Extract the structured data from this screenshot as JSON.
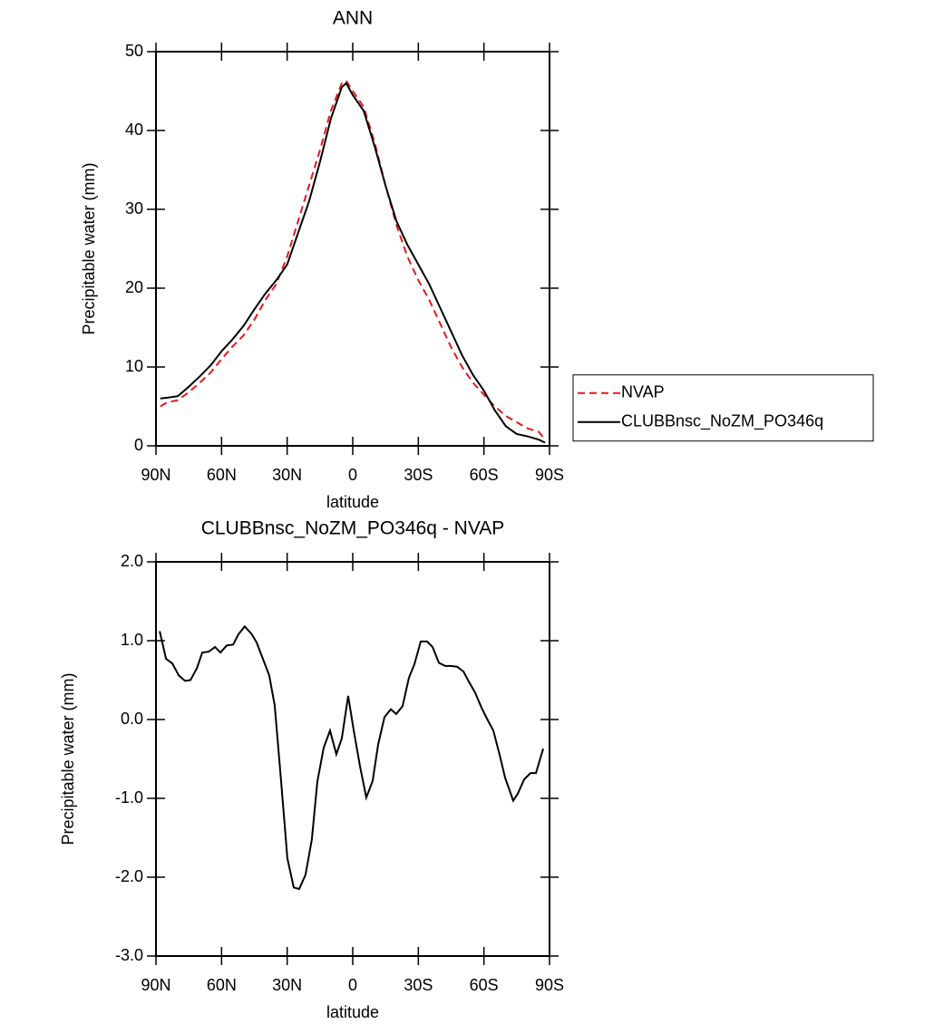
{
  "chart_data": [
    {
      "type": "line",
      "title": "ANN",
      "xlabel": "latitude",
      "ylabel": "Precipitable water (mm)",
      "x": [
        88,
        85,
        80,
        75,
        70,
        65,
        60,
        55,
        50,
        45,
        40,
        35,
        30,
        25,
        20,
        15,
        10,
        5,
        3,
        0,
        -5,
        -10,
        -15,
        -20,
        -25,
        -30,
        -35,
        -40,
        -45,
        -50,
        -55,
        -60,
        -65,
        -70,
        -75,
        -80,
        -85,
        -88
      ],
      "series": [
        {
          "name": "NVAP",
          "color": "#e8181c",
          "linestyle": "dashed",
          "values": [
            5.0,
            5.5,
            5.8,
            6.8,
            8.0,
            9.3,
            11.0,
            12.6,
            14.0,
            16.0,
            18.5,
            20.5,
            24.0,
            28.5,
            33.0,
            37.5,
            42.5,
            46.0,
            46.3,
            45.0,
            43.0,
            38.5,
            33.0,
            28.0,
            24.0,
            21.0,
            18.5,
            15.5,
            12.5,
            10.0,
            8.0,
            6.5,
            5.0,
            3.8,
            3.0,
            2.2,
            1.8,
            0.8
          ]
        },
        {
          "name": "CLUBBnsc_NoZM_PO346q",
          "color": "#000000",
          "linestyle": "solid",
          "values": [
            6.0,
            6.1,
            6.3,
            7.5,
            8.8,
            10.2,
            12.0,
            13.5,
            15.2,
            17.3,
            19.3,
            21.0,
            23.0,
            27.0,
            31.0,
            36.0,
            41.5,
            45.5,
            46.0,
            44.5,
            42.5,
            38.0,
            33.0,
            28.5,
            25.5,
            23.0,
            20.5,
            17.5,
            14.5,
            11.5,
            9.0,
            7.0,
            4.5,
            2.5,
            1.5,
            1.2,
            0.8,
            0.4
          ]
        }
      ],
      "xlim": [
        90,
        -90
      ],
      "xticks": [
        {
          "value": 90,
          "label": "90N"
        },
        {
          "value": 60,
          "label": "60N"
        },
        {
          "value": 30,
          "label": "30N"
        },
        0,
        {
          "value": -30,
          "label": "30S"
        },
        {
          "value": -60,
          "label": "60S"
        },
        {
          "value": -90,
          "label": "90S"
        }
      ],
      "ylim": [
        0,
        50
      ],
      "yticks": [
        0,
        10,
        20,
        30,
        40,
        50
      ],
      "legend": "right"
    },
    {
      "type": "line",
      "title": "CLUBBnsc_NoZM_PO346q - NVAP",
      "xlabel": "latitude",
      "ylabel": "Precipitable water (mm)",
      "x": [
        88.3,
        85.4,
        82.5,
        79.6,
        76.7,
        74.2,
        71.3,
        68.8,
        65.9,
        63,
        60.5,
        57.6,
        54.7,
        52.3,
        49.4,
        46.4,
        44,
        41.1,
        38.2,
        35.7,
        32.8,
        29.9,
        27,
        24.5,
        21.6,
        18.7,
        16.2,
        13.3,
        10.4,
        7.5,
        5,
        2.1,
        -0.4,
        -3.3,
        -6.2,
        -9.1,
        -11.6,
        -14.5,
        -17.4,
        -19.9,
        -22.8,
        -25.7,
        -28.2,
        -31.1,
        -34,
        -36.5,
        -39.4,
        -42.3,
        -44.8,
        -47.7,
        -50.6,
        -53.1,
        -56,
        -58.9,
        -61.4,
        -64.3,
        -67.2,
        -69.7,
        -73.4,
        -75.5,
        -78.4,
        -81.3,
        -83.8,
        -87.1
      ],
      "values": [
        1.12,
        0.77,
        0.71,
        0.56,
        0.49,
        0.5,
        0.65,
        0.85,
        0.86,
        0.92,
        0.85,
        0.94,
        0.95,
        1.08,
        1.18,
        1.09,
        0.98,
        0.77,
        0.56,
        0.18,
        -0.77,
        -1.76,
        -2.13,
        -2.15,
        -1.97,
        -1.52,
        -0.79,
        -0.36,
        -0.14,
        -0.44,
        -0.24,
        0.3,
        -0.13,
        -0.59,
        -0.99,
        -0.78,
        -0.32,
        0.03,
        0.13,
        0.07,
        0.17,
        0.53,
        0.7,
        0.99,
        0.99,
        0.92,
        0.72,
        0.68,
        0.68,
        0.67,
        0.61,
        0.48,
        0.34,
        0.15,
        0.01,
        -0.14,
        -0.45,
        -0.74,
        -1.03,
        -0.94,
        -0.76,
        -0.68,
        -0.68,
        -0.37
      ],
      "color": "#000000",
      "xlim": [
        90,
        -90
      ],
      "xticks": [
        {
          "value": 90,
          "label": "90N"
        },
        {
          "value": 60,
          "label": "60N"
        },
        {
          "value": 30,
          "label": "30N"
        },
        0,
        {
          "value": -30,
          "label": "30S"
        },
        {
          "value": -60,
          "label": "60S"
        },
        {
          "value": -90,
          "label": "90S"
        }
      ],
      "ylim": [
        -3,
        2
      ],
      "yticks": [
        {
          "value": -3,
          "label": "-3.0"
        },
        {
          "value": -2,
          "label": "-2.0"
        },
        {
          "value": -1,
          "label": "-1.0"
        },
        {
          "value": 0,
          "label": "0.0"
        },
        {
          "value": 1,
          "label": "1.0"
        },
        {
          "value": 2,
          "label": "2.0"
        }
      ]
    }
  ]
}
